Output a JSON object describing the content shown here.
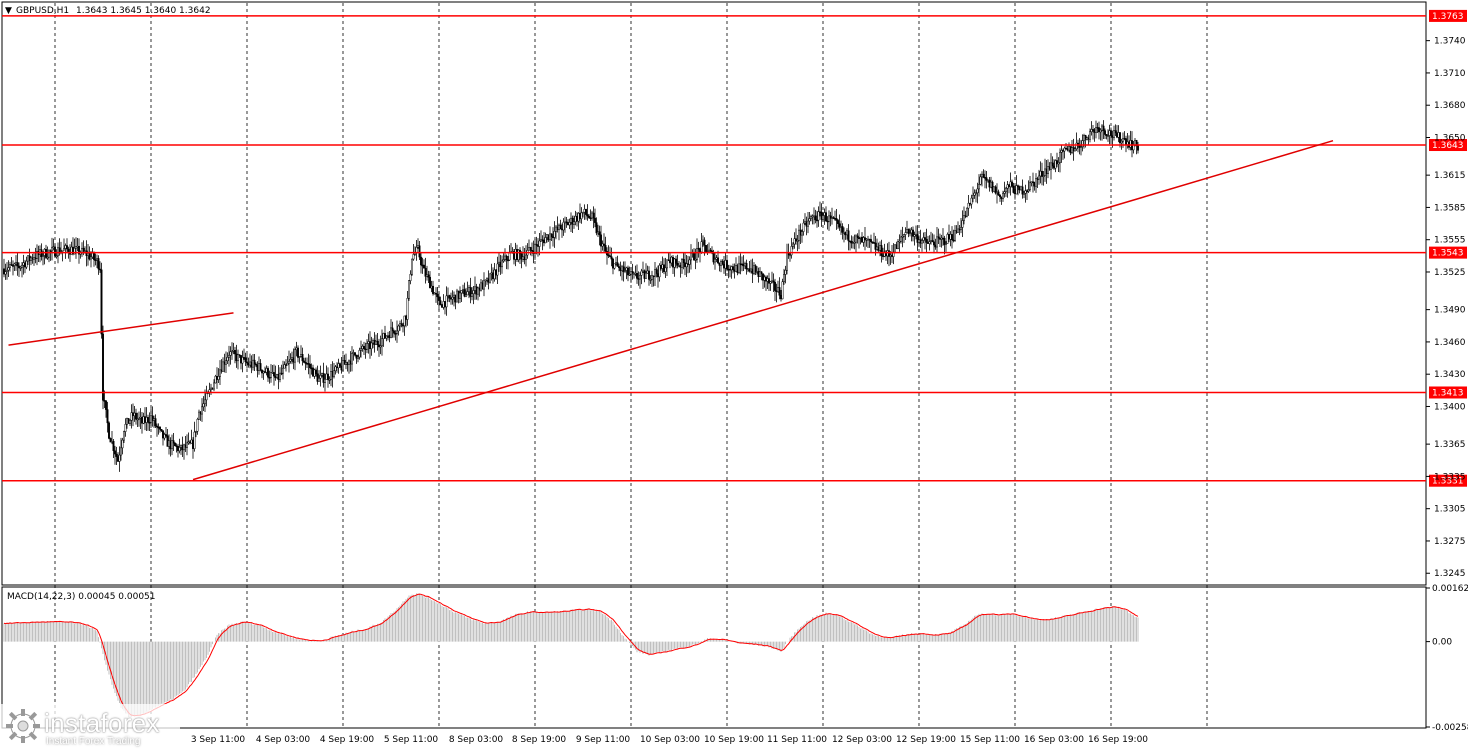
{
  "header": {
    "symbol": "GBPUSD,H1",
    "ohlc": "1.3643 1.3645 1.3640 1.3642"
  },
  "macd_label": "MACD(14,22,3) 0.00045 0.00051",
  "branding": {
    "name": "instaforex",
    "tagline": "Instant Forex Trading"
  },
  "colors": {
    "level_line": "#ff0000",
    "trend_line": "#e00000",
    "badge_bg": "#ff0000",
    "macd_hist": "#c0c0c0",
    "macd_signal": "#ff0000"
  },
  "chart_data": [
    {
      "type": "candlestick",
      "symbol": "GBPUSD",
      "timeframe": "H1",
      "ylim": [
        1.3235,
        1.3775
      ],
      "yticks": [
        "1.3740",
        "1.3710",
        "1.3680",
        "1.3650",
        "1.3615",
        "1.3585",
        "1.3555",
        "1.3525",
        "1.3490",
        "1.3460",
        "1.3430",
        "1.3400",
        "1.3365",
        "1.3335",
        "1.3305",
        "1.3275",
        "1.3245"
      ],
      "xticks": [
        "3 Sep 11:00",
        "4 Sep 03:00",
        "4 Sep 19:00",
        "5 Sep 11:00",
        "8 Sep 03:00",
        "8 Sep 19:00",
        "9 Sep 11:00",
        "10 Sep 03:00",
        "10 Sep 19:00",
        "11 Sep 11:00",
        "12 Sep 03:00",
        "12 Sep 19:00",
        "15 Sep 11:00",
        "16 Sep 03:00",
        "16 Sep 19:00"
      ],
      "levels": [
        {
          "value": 1.3763,
          "label": "1.3763"
        },
        {
          "value": 1.3643,
          "label": "1.3643"
        },
        {
          "value": 1.3543,
          "label": "1.3543"
        },
        {
          "value": 1.3413,
          "label": "1.3413"
        },
        {
          "value": 1.3331,
          "label": "1.3331"
        }
      ],
      "trendlines": [
        {
          "from": {
            "bar": 3,
            "price": 1.3457
          },
          "to": {
            "bar": 153,
            "price": 1.3487
          }
        },
        {
          "from": {
            "bar": 126,
            "price": 1.3332
          },
          "to": {
            "bar": 886,
            "price": 1.3647
          }
        }
      ],
      "close_path": [
        [
          0,
          1.3528
        ],
        [
          10,
          1.353
        ],
        [
          20,
          1.354
        ],
        [
          35,
          1.3545
        ],
        [
          45,
          1.3546
        ],
        [
          55,
          1.3542
        ],
        [
          62,
          1.3535
        ],
        [
          64,
          1.353
        ],
        [
          66,
          1.341
        ],
        [
          70,
          1.3375
        ],
        [
          76,
          1.335
        ],
        [
          80,
          1.338
        ],
        [
          86,
          1.3392
        ],
        [
          92,
          1.3385
        ],
        [
          98,
          1.339
        ],
        [
          104,
          1.3375
        ],
        [
          110,
          1.3365
        ],
        [
          118,
          1.336
        ],
        [
          126,
          1.3365
        ],
        [
          130,
          1.3395
        ],
        [
          136,
          1.341
        ],
        [
          142,
          1.343
        ],
        [
          150,
          1.345
        ],
        [
          156,
          1.3445
        ],
        [
          162,
          1.344
        ],
        [
          168,
          1.3438
        ],
        [
          175,
          1.3432
        ],
        [
          182,
          1.3425
        ],
        [
          190,
          1.344
        ],
        [
          195,
          1.345
        ],
        [
          202,
          1.344
        ],
        [
          210,
          1.3425
        ],
        [
          218,
          1.343
        ],
        [
          226,
          1.3438
        ],
        [
          234,
          1.3448
        ],
        [
          242,
          1.3455
        ],
        [
          250,
          1.346
        ],
        [
          258,
          1.347
        ],
        [
          264,
          1.3475
        ],
        [
          268,
          1.3485
        ],
        [
          272,
          1.354
        ],
        [
          276,
          1.3545
        ],
        [
          280,
          1.3525
        ],
        [
          284,
          1.3515
        ],
        [
          290,
          1.3495
        ],
        [
          298,
          1.35
        ],
        [
          306,
          1.3505
        ],
        [
          314,
          1.3508
        ],
        [
          322,
          1.3515
        ],
        [
          330,
          1.353
        ],
        [
          338,
          1.3542
        ],
        [
          346,
          1.354
        ],
        [
          354,
          1.3548
        ],
        [
          362,
          1.3558
        ],
        [
          370,
          1.3565
        ],
        [
          378,
          1.3572
        ],
        [
          386,
          1.358
        ],
        [
          392,
          1.3575
        ],
        [
          396,
          1.356
        ],
        [
          402,
          1.354
        ],
        [
          408,
          1.353
        ],
        [
          414,
          1.3525
        ],
        [
          420,
          1.352
        ],
        [
          428,
          1.3522
        ],
        [
          436,
          1.3525
        ],
        [
          444,
          1.3535
        ],
        [
          452,
          1.3532
        ],
        [
          460,
          1.354
        ],
        [
          466,
          1.355
        ],
        [
          472,
          1.354
        ],
        [
          480,
          1.3532
        ],
        [
          488,
          1.3528
        ],
        [
          496,
          1.353
        ],
        [
          504,
          1.3522
        ],
        [
          512,
          1.3512
        ],
        [
          518,
          1.3505
        ],
        [
          522,
          1.354
        ],
        [
          530,
          1.356
        ],
        [
          538,
          1.3575
        ],
        [
          546,
          1.3578
        ],
        [
          554,
          1.357
        ],
        [
          560,
          1.356
        ],
        [
          568,
          1.3555
        ],
        [
          576,
          1.3552
        ],
        [
          584,
          1.3545
        ],
        [
          590,
          1.354
        ],
        [
          596,
          1.355
        ],
        [
          602,
          1.3565
        ],
        [
          608,
          1.3558
        ],
        [
          614,
          1.3552
        ],
        [
          620,
          1.3552
        ],
        [
          628,
          1.3555
        ],
        [
          634,
          1.356
        ],
        [
          640,
          1.3575
        ],
        [
          646,
          1.3595
        ],
        [
          652,
          1.3612
        ],
        [
          658,
          1.3605
        ],
        [
          664,
          1.3595
        ],
        [
          670,
          1.3605
        ],
        [
          676,
          1.36
        ],
        [
          682,
          1.3603
        ],
        [
          688,
          1.361
        ],
        [
          694,
          1.362
        ],
        [
          700,
          1.3625
        ],
        [
          706,
          1.3635
        ],
        [
          712,
          1.364
        ],
        [
          718,
          1.3645
        ],
        [
          724,
          1.3655
        ],
        [
          730,
          1.366
        ],
        [
          736,
          1.3655
        ],
        [
          742,
          1.365
        ],
        [
          748,
          1.3648
        ],
        [
          752,
          1.3643
        ],
        [
          756,
          1.3642
        ]
      ]
    },
    {
      "type": "bar",
      "name": "MACD(14,22,3)",
      "values_label": "0.00045 0.00051",
      "ylim": [
        -0.00258,
        0.00162
      ],
      "yticks": [
        "0.00162",
        "0.00",
        "-0.00258"
      ],
      "hist_path": [
        [
          0,
          0.00055
        ],
        [
          15,
          0.00058
        ],
        [
          30,
          0.0006
        ],
        [
          45,
          0.00058
        ],
        [
          55,
          0.0005
        ],
        [
          62,
          0.0003
        ],
        [
          66,
          -0.0004
        ],
        [
          72,
          -0.0013
        ],
        [
          78,
          -0.002
        ],
        [
          84,
          -0.0023
        ],
        [
          92,
          -0.0022
        ],
        [
          100,
          -0.002
        ],
        [
          110,
          -0.0018
        ],
        [
          120,
          -0.0015
        ],
        [
          128,
          -0.001
        ],
        [
          136,
          -0.0004
        ],
        [
          142,
          0.0002
        ],
        [
          150,
          0.0005
        ],
        [
          160,
          0.0006
        ],
        [
          170,
          0.0005
        ],
        [
          180,
          0.0003
        ],
        [
          190,
          0.00015
        ],
        [
          200,
          5e-05
        ],
        [
          210,
          2e-05
        ],
        [
          220,
          0.00015
        ],
        [
          232,
          0.0003
        ],
        [
          242,
          0.0004
        ],
        [
          252,
          0.0006
        ],
        [
          262,
          0.001
        ],
        [
          270,
          0.0014
        ],
        [
          276,
          0.00145
        ],
        [
          284,
          0.0013
        ],
        [
          292,
          0.0011
        ],
        [
          300,
          0.0009
        ],
        [
          310,
          0.0007
        ],
        [
          320,
          0.00055
        ],
        [
          330,
          0.0006
        ],
        [
          340,
          0.0008
        ],
        [
          350,
          0.0009
        ],
        [
          360,
          0.00088
        ],
        [
          370,
          0.0009
        ],
        [
          380,
          0.00095
        ],
        [
          390,
          0.00098
        ],
        [
          398,
          0.0009
        ],
        [
          406,
          0.0006
        ],
        [
          414,
          0.0001
        ],
        [
          422,
          -0.0003
        ],
        [
          430,
          -0.0004
        ],
        [
          440,
          -0.0003
        ],
        [
          450,
          -0.0002
        ],
        [
          460,
          -0.0001
        ],
        [
          470,
          0.0001
        ],
        [
          480,
          5e-05
        ],
        [
          490,
          -5e-05
        ],
        [
          500,
          -8e-05
        ],
        [
          510,
          -0.00015
        ],
        [
          518,
          -0.0003
        ],
        [
          524,
          0.0001
        ],
        [
          532,
          0.0005
        ],
        [
          540,
          0.00075
        ],
        [
          548,
          0.00085
        ],
        [
          556,
          0.0008
        ],
        [
          564,
          0.0006
        ],
        [
          572,
          0.0004
        ],
        [
          580,
          0.0002
        ],
        [
          590,
          0.0001
        ],
        [
          600,
          0.0002
        ],
        [
          610,
          0.00025
        ],
        [
          620,
          0.0002
        ],
        [
          630,
          0.00025
        ],
        [
          640,
          0.0005
        ],
        [
          648,
          0.0008
        ],
        [
          656,
          0.00085
        ],
        [
          664,
          0.0008
        ],
        [
          672,
          0.00085
        ],
        [
          680,
          0.00075
        ],
        [
          690,
          0.00065
        ],
        [
          700,
          0.0007
        ],
        [
          710,
          0.0008
        ],
        [
          720,
          0.0009
        ],
        [
          730,
          0.001
        ],
        [
          740,
          0.00105
        ],
        [
          748,
          0.00095
        ],
        [
          756,
          0.0007
        ]
      ]
    }
  ]
}
